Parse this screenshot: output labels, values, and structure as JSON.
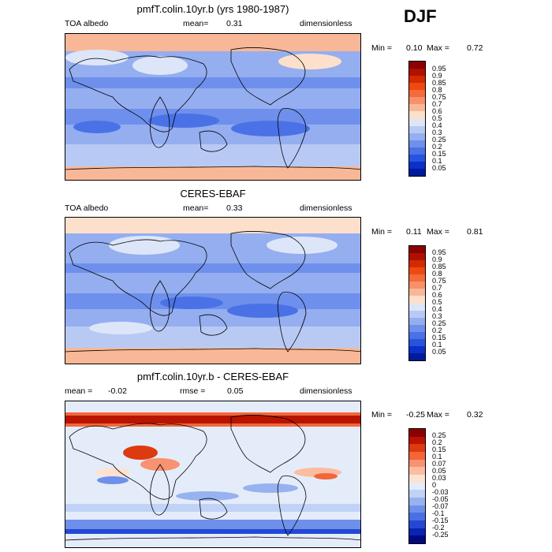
{
  "season": "DJF",
  "panels": [
    {
      "title": "pmfT.colin.10yr.b (yrs 1980-1987)",
      "left_label": "TOA albedo",
      "center_label": "mean=",
      "center_value": "0.31",
      "right_label": "dimensionless",
      "min_label": "Min =",
      "min_value": "0.10",
      "max_label": "Max =",
      "max_value": "0.72",
      "colorbar_labels": [
        "0.95",
        "0.9",
        "0.85",
        "0.8",
        "0.75",
        "0.7",
        "0.6",
        "0.5",
        "0.4",
        "0.3",
        "0.25",
        "0.2",
        "0.15",
        "0.1",
        "0.05"
      ]
    },
    {
      "title": "CERES-EBAF",
      "left_label": "TOA albedo",
      "center_label": "mean=",
      "center_value": "0.33",
      "right_label": "dimensionless",
      "min_label": "Min =",
      "min_value": "0.11",
      "max_label": "Max =",
      "max_value": "0.81",
      "colorbar_labels": [
        "0.95",
        "0.9",
        "0.85",
        "0.8",
        "0.75",
        "0.7",
        "0.6",
        "0.5",
        "0.4",
        "0.3",
        "0.25",
        "0.2",
        "0.15",
        "0.1",
        "0.05"
      ]
    },
    {
      "title": "pmfT.colin.10yr.b - CERES-EBAF",
      "left_label": "mean =",
      "left_value": "-0.02",
      "center_label": "rmse =",
      "center_value": "0.05",
      "right_label": "dimensionless",
      "min_label": "Min =",
      "min_value": "-0.25",
      "max_label": "Max =",
      "max_value": "0.32",
      "colorbar_labels": [
        "0.25",
        "0.2",
        "0.15",
        "0.1",
        "0.07",
        "0.05",
        "0.03",
        "0",
        "-0.03",
        "-0.05",
        "-0.07",
        "-0.1",
        "-0.15",
        "-0.2",
        "-0.25"
      ]
    }
  ],
  "colors": {
    "abs_scale": [
      "#8b0000",
      "#b01000",
      "#d42a00",
      "#ee4a10",
      "#f56a3a",
      "#f89068",
      "#f8b898",
      "#fde0cc",
      "#dde6f8",
      "#b8caf4",
      "#94aef0",
      "#6e90ec",
      "#4a72e6",
      "#2654de",
      "#0a30c8",
      "#001a9c"
    ],
    "diff_scale": [
      "#8b0000",
      "#b81400",
      "#dd3a10",
      "#f2663a",
      "#f89270",
      "#fbbca0",
      "#fde2d2",
      "#e4ecfa",
      "#c0d2f6",
      "#98b2f0",
      "#6e90ea",
      "#4a70e2",
      "#2448d4",
      "#0a24b4",
      "#000a80"
    ]
  }
}
